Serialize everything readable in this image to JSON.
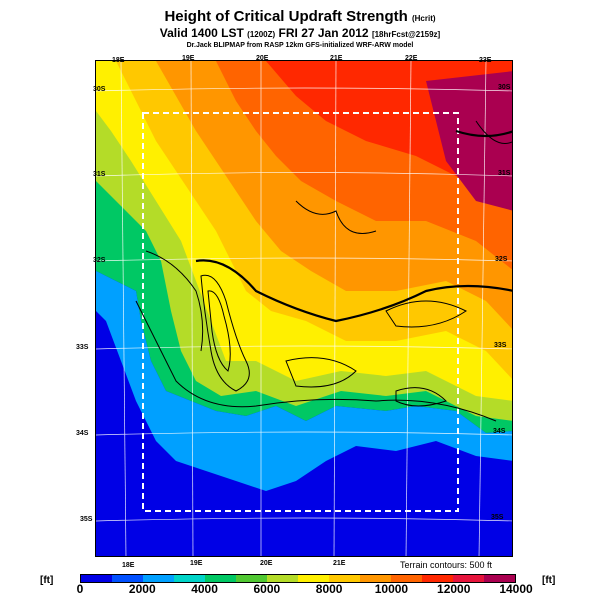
{
  "header": {
    "title": "Height of Critical Updraft Strength",
    "title_unit": "(Hcrit)",
    "valid_line": "Valid 1400 LST",
    "valid_code": "(1200Z)",
    "valid_date": "FRI 27 Jan 2012",
    "forecast": "[18hrFcst@2159z]",
    "model_line": "Dr.Jack BLIPMAP from RASP 12km GFS-initialized WRF-ARW model"
  },
  "map": {
    "lon_labels_top": [
      "18E",
      "19E",
      "20E",
      "21E",
      "22E",
      "23E"
    ],
    "lon_labels_bottom": [
      "18E",
      "19E",
      "20E",
      "21E"
    ],
    "lat_labels_left": [
      "30S",
      "31S",
      "32S",
      "33S",
      "34S",
      "35S"
    ],
    "lat_labels_right": [
      "30S",
      "31S",
      "32S",
      "33S",
      "34S",
      "35S"
    ],
    "terrain_note": "Terrain contours: 500 ft"
  },
  "colorbar": {
    "unit_left": "[ft]",
    "unit_right": "[ft]",
    "ticks": [
      "0",
      "2000",
      "4000",
      "6000",
      "8000",
      "10000",
      "12000",
      "14000"
    ],
    "colors": [
      "#0000e6",
      "#0050ff",
      "#00a0ff",
      "#00d4c8",
      "#00c864",
      "#50c832",
      "#b4dc28",
      "#fff000",
      "#ffc800",
      "#ff9600",
      "#ff6400",
      "#ff2800",
      "#e6143c",
      "#aa0050"
    ]
  }
}
